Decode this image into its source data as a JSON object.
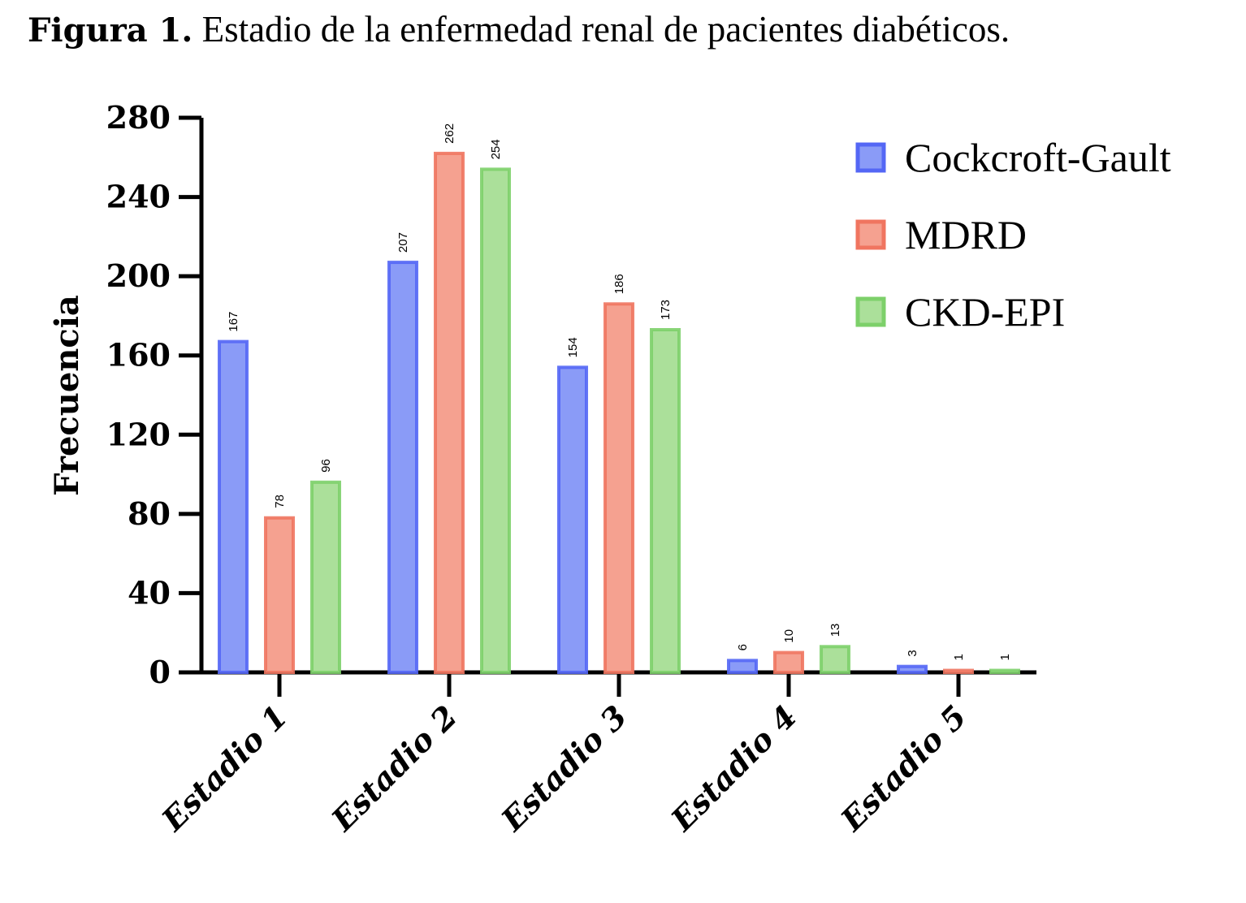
{
  "chart_data": {
    "type": "bar",
    "title_bold": "Figura 1.",
    "title": "Estadio de la enfermedad renal de pacientes diabéticos.",
    "xlabel": "",
    "ylabel": "Frecuencia",
    "ylim": [
      0,
      280
    ],
    "yticks": [
      "0",
      "40",
      "80",
      "120",
      "160",
      "200",
      "240",
      "280"
    ],
    "ytick_values": [
      0,
      40,
      80,
      120,
      160,
      200,
      240,
      280
    ],
    "categories": [
      "Estadio 1",
      "Estadio 2",
      "Estadio 3",
      "Estadio 4",
      "Estadio 5"
    ],
    "legend_position": "top-right",
    "grid": false,
    "series": [
      {
        "name": "Cockcroft-Gault",
        "values": [
          167,
          207,
          154,
          6,
          3
        ],
        "fill": "#8a9bf7",
        "stroke": "#5467f5"
      },
      {
        "name": "MDRD",
        "values": [
          78,
          262,
          186,
          10,
          1
        ],
        "fill": "#f5a190",
        "stroke": "#f07560"
      },
      {
        "name": "CKD-EPI",
        "values": [
          96,
          254,
          173,
          13,
          1
        ],
        "fill": "#abe09a",
        "stroke": "#7dd06a"
      }
    ]
  }
}
